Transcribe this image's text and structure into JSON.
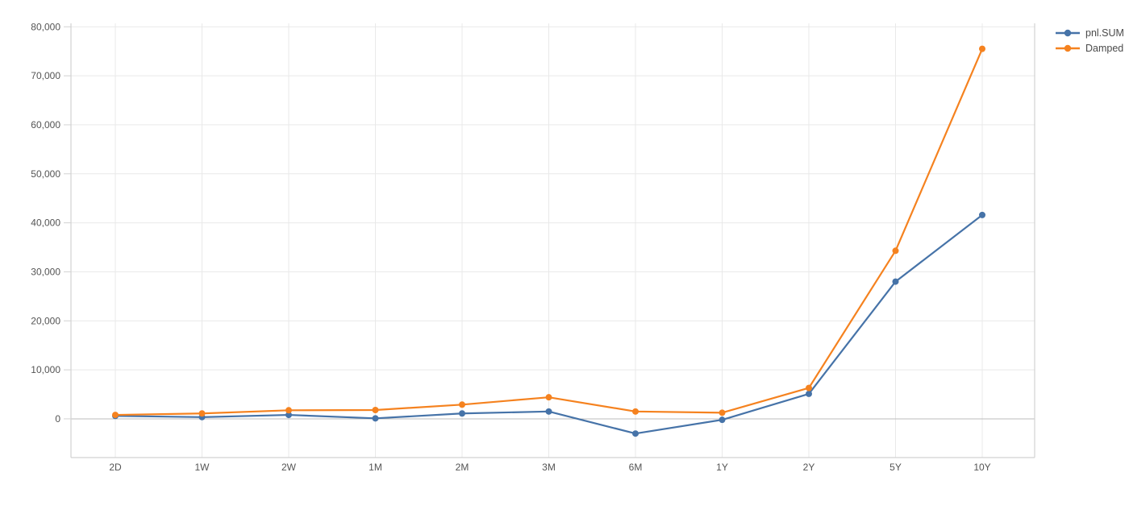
{
  "chart_data": {
    "type": "line",
    "title": "",
    "xlabel": "",
    "ylabel": "",
    "categories": [
      "2D",
      "1W",
      "2W",
      "1M",
      "2M",
      "3M",
      "6M",
      "1Y",
      "2Y",
      "5Y",
      "10Y"
    ],
    "series": [
      {
        "name": "pnl.SUM",
        "color": "#4673a8",
        "marker": "circle",
        "values": [
          600,
          350,
          800,
          100,
          1100,
          1500,
          -3000,
          -200,
          5100,
          28000,
          41600
        ]
      },
      {
        "name": "Damped",
        "color": "#f5821f",
        "marker": "circle",
        "values": [
          800,
          1100,
          1750,
          1800,
          2900,
          4400,
          1500,
          1250,
          6300,
          34300,
          75500
        ]
      }
    ],
    "ylim": [
      -7900,
      80700
    ],
    "y_ticks": [
      0,
      10000,
      20000,
      30000,
      40000,
      50000,
      60000,
      70000,
      80000
    ],
    "y_tick_labels": [
      "0",
      "10,000",
      "20,000",
      "30,000",
      "40,000",
      "50,000",
      "60,000",
      "70,000",
      "80,000"
    ],
    "grid": true,
    "legend_position": "outside-top-right",
    "colors": {
      "grid": "#e9e9e9",
      "zero_line": "#bdbdbd",
      "axis_border": "#d2d2d2",
      "tick_label": "#545454",
      "background": "#ffffff"
    }
  }
}
